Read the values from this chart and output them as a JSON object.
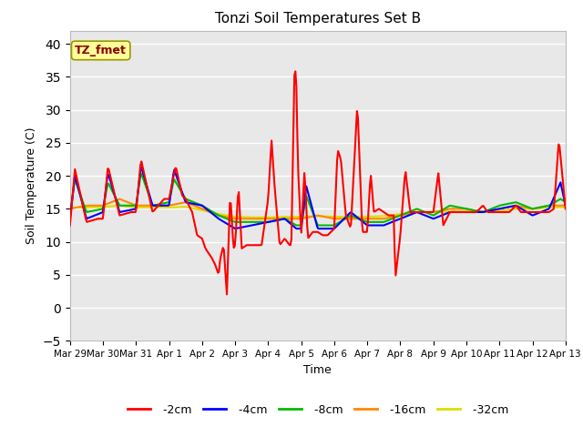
{
  "title": "Tonzi Soil Temperatures Set B",
  "xlabel": "Time",
  "ylabel": "Soil Temperature (C)",
  "ylim": [
    -5,
    42
  ],
  "yticks": [
    -5,
    0,
    5,
    10,
    15,
    20,
    25,
    30,
    35,
    40
  ],
  "annotation_label": "TZ_fmet",
  "annotation_color": "#8B0000",
  "annotation_bg": "#FFFF99",
  "annotation_edge": "#999900",
  "plot_bg": "#E8E8E8",
  "grid_color": "#FFFFFF",
  "series_colors": {
    "-2cm": "#FF0000",
    "-4cm": "#0000FF",
    "-8cm": "#00BB00",
    "-16cm": "#FF8800",
    "-32cm": "#DDDD00"
  },
  "x_labels": [
    "Mar 29",
    "Mar 30",
    "Mar 31",
    "Apr 1",
    "Apr 2",
    "Apr 3",
    "Apr 4",
    "Apr 5",
    "Apr 6",
    "Apr 7",
    "Apr 8",
    "Apr 9",
    "Apr 10",
    "Apr 11",
    "Apr 12",
    "Apr 13"
  ],
  "figsize": [
    6.4,
    4.8
  ],
  "dpi": 100
}
